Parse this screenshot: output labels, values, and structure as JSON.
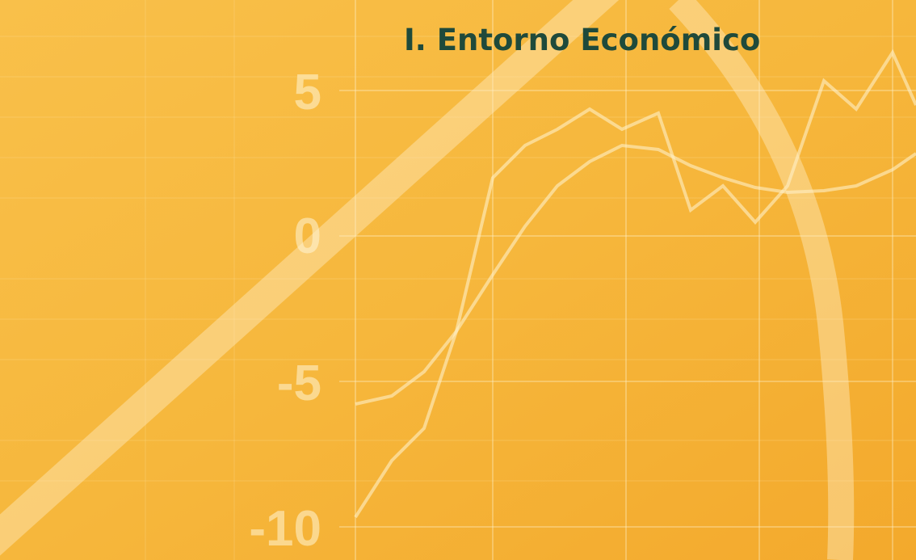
{
  "title": "I. Entorno Económico",
  "axis_labels": [
    "5",
    "0",
    "-5",
    "-10"
  ]
}
